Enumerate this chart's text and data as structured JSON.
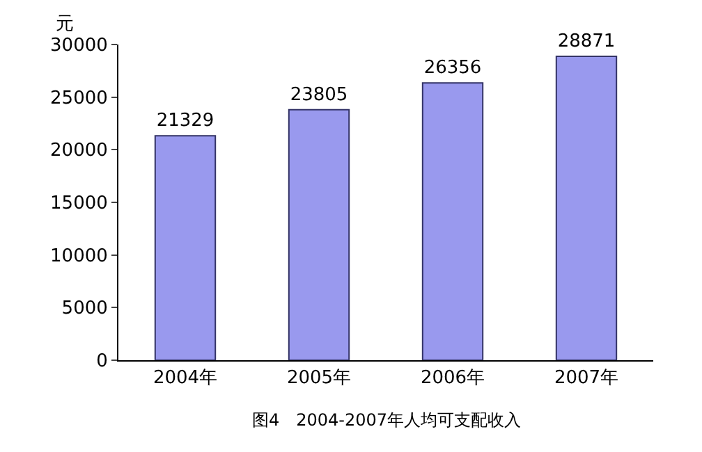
{
  "chart_data": {
    "type": "bar",
    "title": "图4　2004-2007年人均可支配收入",
    "ylabel": "元",
    "categories": [
      "2004年",
      "2005年",
      "2006年",
      "2007年"
    ],
    "values": [
      21329,
      23805,
      26356,
      28871
    ],
    "color": "#9999ee",
    "ylim": [
      0,
      30000
    ],
    "yticks": [
      0,
      5000,
      10000,
      15000,
      20000,
      25000,
      30000
    ],
    "data_labels": true
  }
}
